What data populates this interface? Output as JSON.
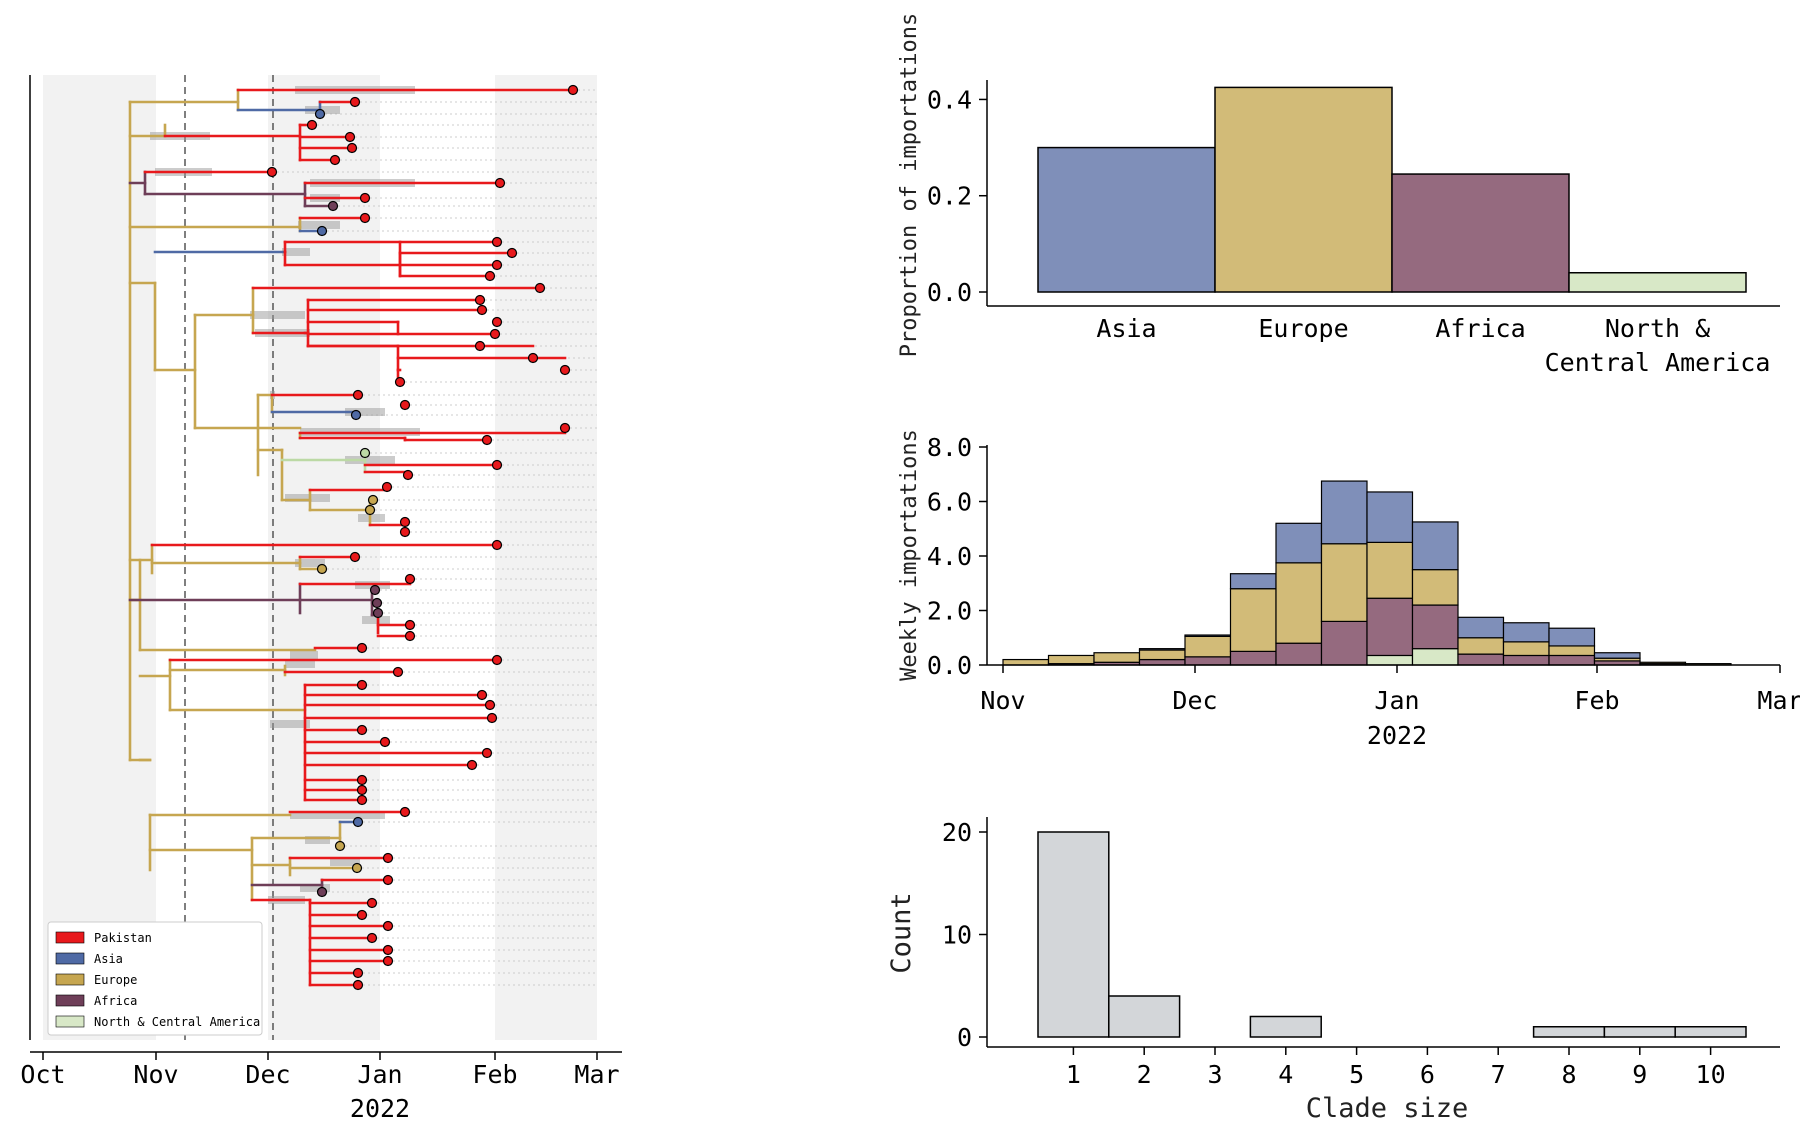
{
  "colors": {
    "Pakistan": "#e8191c",
    "Asia": "#7f8fb9",
    "Europe": "#d2bb78",
    "Africa": "#956a7f",
    "NorthCentralAmerica": "#d8e8c7",
    "tree_asia": "#4f6aa5",
    "tree_europe": "#c6a650",
    "tree_africa": "#6e3e58",
    "tree_nca": "#bcd9a5",
    "clade_bar": "#d3d6d9",
    "shade": "#f2f2f2"
  },
  "tree_panel": {
    "x_ticks": [
      "Oct",
      "Nov",
      "Dec",
      "Jan",
      "Feb",
      "Mar"
    ],
    "x_year": "2022",
    "legend": [
      {
        "label": "Pakistan",
        "color_key": "Pakistan"
      },
      {
        "label": "Asia",
        "color_key": "tree_asia"
      },
      {
        "label": "Europe",
        "color_key": "tree_europe"
      },
      {
        "label": "Africa",
        "color_key": "tree_africa"
      },
      {
        "label": "North & Central America",
        "color_key": "NorthCentralAmerica"
      }
    ]
  },
  "chart_data": [
    {
      "type": "bar",
      "id": "proportion",
      "categories": [
        "Asia",
        "Europe",
        "Africa",
        "North &\nCentral America"
      ],
      "values": [
        0.3,
        0.425,
        0.245,
        0.04
      ],
      "ylabel": "Proportion of importations",
      "ylim": [
        0,
        0.43
      ],
      "yticks": [
        0.0,
        0.2,
        0.4
      ],
      "ytick_labels": [
        "0.0",
        "0.2",
        "0.4"
      ]
    },
    {
      "type": "bar",
      "id": "weekly",
      "stacked": true,
      "x_labels": [
        "Nov",
        "Dec",
        "Jan",
        "Feb",
        "Mar"
      ],
      "x_year": "2022",
      "ylabel": "Weekly importations",
      "ylim": [
        0,
        8
      ],
      "yticks": [
        0,
        2,
        4,
        6,
        8
      ],
      "ytick_labels": [
        "0.0",
        "2.0",
        "4.0",
        "6.0",
        "8.0"
      ],
      "weeks": [
        "Nov 1",
        "Nov 8",
        "Nov 15",
        "Nov 22",
        "Nov 29",
        "Dec 6",
        "Dec 13",
        "Dec 20",
        "Dec 27",
        "Jan 3",
        "Jan 10",
        "Jan 17",
        "Jan 24",
        "Jan 31",
        "Feb 7",
        "Feb 14"
      ],
      "series": [
        {
          "name": "North & Central America",
          "color_key": "NorthCentralAmerica",
          "values": [
            0,
            0,
            0,
            0,
            0,
            0,
            0,
            0,
            0.35,
            0.6,
            0,
            0,
            0,
            0,
            0,
            0
          ]
        },
        {
          "name": "Africa",
          "color_key": "Africa",
          "values": [
            0,
            0.05,
            0.1,
            0.2,
            0.3,
            0.5,
            0.8,
            1.6,
            2.1,
            1.6,
            0.4,
            0.35,
            0.35,
            0.15,
            0.05,
            0
          ]
        },
        {
          "name": "Europe",
          "color_key": "Europe",
          "values": [
            0.2,
            0.3,
            0.35,
            0.35,
            0.75,
            2.3,
            2.95,
            2.85,
            2.05,
            1.3,
            0.6,
            0.5,
            0.35,
            0.1,
            0.05,
            0.05
          ]
        },
        {
          "name": "Asia",
          "color_key": "Asia",
          "values": [
            0,
            0,
            0,
            0.05,
            0.05,
            0.55,
            1.45,
            2.3,
            1.85,
            1.75,
            0.75,
            0.7,
            0.65,
            0.2,
            0,
            0
          ]
        }
      ]
    },
    {
      "type": "bar",
      "id": "clade_size",
      "categories": [
        "1",
        "2",
        "3",
        "4",
        "5",
        "6",
        "7",
        "8",
        "9",
        "10"
      ],
      "values": [
        20,
        4,
        0,
        2,
        0,
        0,
        0,
        1,
        1,
        1
      ],
      "xlabel": "Clade size",
      "ylabel": "Count",
      "ylim": [
        0,
        20
      ],
      "yticks": [
        0,
        10,
        20
      ],
      "ytick_labels": [
        "0",
        "10",
        "20"
      ]
    }
  ]
}
